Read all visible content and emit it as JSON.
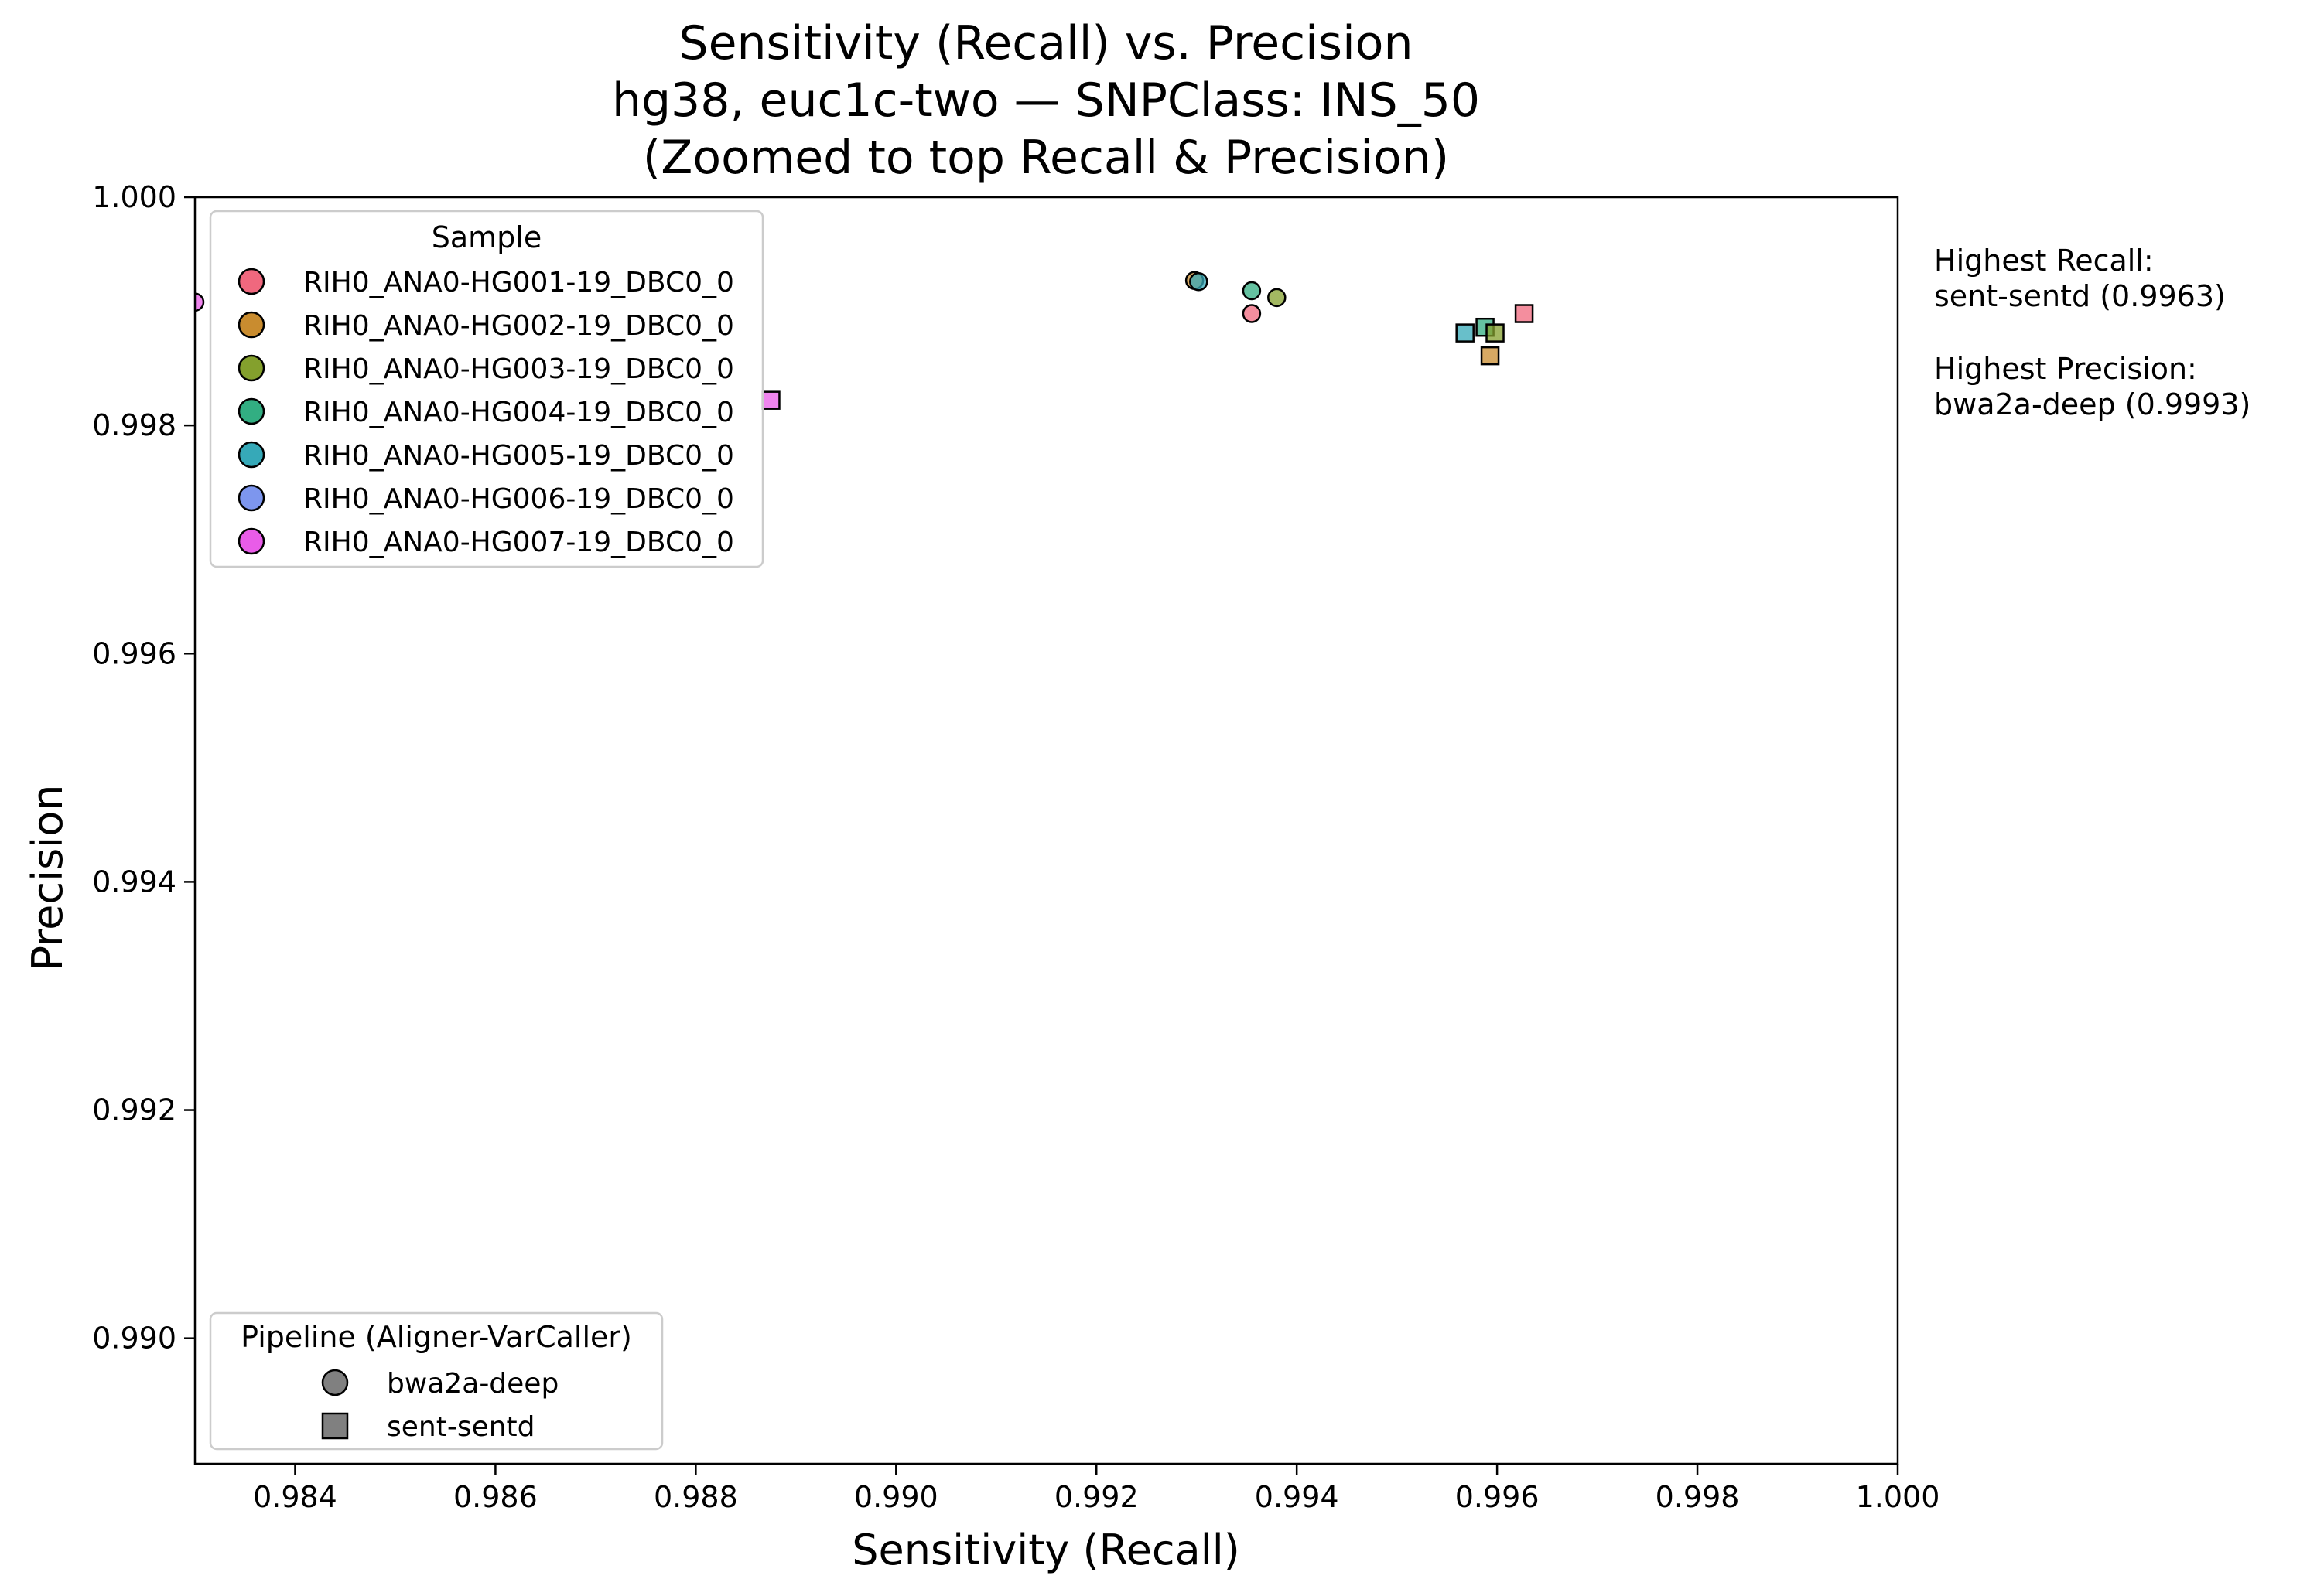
{
  "chart_data": {
    "type": "scatter",
    "title": [
      "Sensitivity (Recall) vs. Precision",
      "hg38, euc1c-two — SNPClass: INS_50",
      "(Zoomed to top Recall & Precision)"
    ],
    "xlabel": "Sensitivity (Recall)",
    "ylabel": "Precision",
    "xlim": [
      0.983,
      1.0
    ],
    "ylim": [
      0.9889,
      1.0
    ],
    "xticks": [
      "0.984",
      "0.986",
      "0.988",
      "0.990",
      "0.992",
      "0.994",
      "0.996",
      "0.998",
      "1.000"
    ],
    "yticks": [
      "0.990",
      "0.992",
      "0.994",
      "0.996",
      "0.998",
      "1.000"
    ],
    "grid": false,
    "legend_sample": {
      "title": "Sample",
      "placement": "top-left",
      "entries": [
        {
          "label": "RIH0_ANA0-HG001-19_DBC0_0",
          "color": "#f0687e"
        },
        {
          "label": "RIH0_ANA0-HG002-19_DBC0_0",
          "color": "#c98c2f"
        },
        {
          "label": "RIH0_ANA0-HG003-19_DBC0_0",
          "color": "#84a02d"
        },
        {
          "label": "RIH0_ANA0-HG004-19_DBC0_0",
          "color": "#32ae82"
        },
        {
          "label": "RIH0_ANA0-HG005-19_DBC0_0",
          "color": "#36a9b8"
        },
        {
          "label": "RIH0_ANA0-HG006-19_DBC0_0",
          "color": "#7d96ee"
        },
        {
          "label": "RIH0_ANA0-HG007-19_DBC0_0",
          "color": "#e95ce8"
        }
      ]
    },
    "legend_pipeline": {
      "title": "Pipeline (Aligner-VarCaller)",
      "placement": "bottom-left",
      "entries": [
        {
          "label": "bwa2a-deep",
          "marker": "circle"
        },
        {
          "label": "sent-sentd",
          "marker": "square"
        }
      ]
    },
    "annotations": [
      [
        "Highest Recall:",
        "sent-sentd (0.9963)"
      ],
      [
        "Highest Precision:",
        "bwa2a-deep (0.9993)"
      ]
    ],
    "points": [
      {
        "sample": 6,
        "pipeline": "bwa2a-deep",
        "x": 0.983,
        "y": 0.99908
      },
      {
        "sample": 6,
        "pipeline": "sent-sentd",
        "x": 0.98875,
        "y": 0.99822
      },
      {
        "sample": 1,
        "pipeline": "bwa2a-deep",
        "x": 0.99298,
        "y": 0.99927
      },
      {
        "sample": 4,
        "pipeline": "bwa2a-deep",
        "x": 0.99302,
        "y": 0.99926
      },
      {
        "sample": 3,
        "pipeline": "bwa2a-deep",
        "x": 0.99355,
        "y": 0.99918
      },
      {
        "sample": 0,
        "pipeline": "bwa2a-deep",
        "x": 0.99355,
        "y": 0.99898
      },
      {
        "sample": 2,
        "pipeline": "bwa2a-deep",
        "x": 0.9938,
        "y": 0.99912
      },
      {
        "sample": 4,
        "pipeline": "sent-sentd",
        "x": 0.99568,
        "y": 0.99881
      },
      {
        "sample": 3,
        "pipeline": "sent-sentd",
        "x": 0.99588,
        "y": 0.99886
      },
      {
        "sample": 2,
        "pipeline": "sent-sentd",
        "x": 0.99598,
        "y": 0.99881
      },
      {
        "sample": 1,
        "pipeline": "sent-sentd",
        "x": 0.99593,
        "y": 0.99861
      },
      {
        "sample": 0,
        "pipeline": "sent-sentd",
        "x": 0.99627,
        "y": 0.99898
      }
    ]
  }
}
